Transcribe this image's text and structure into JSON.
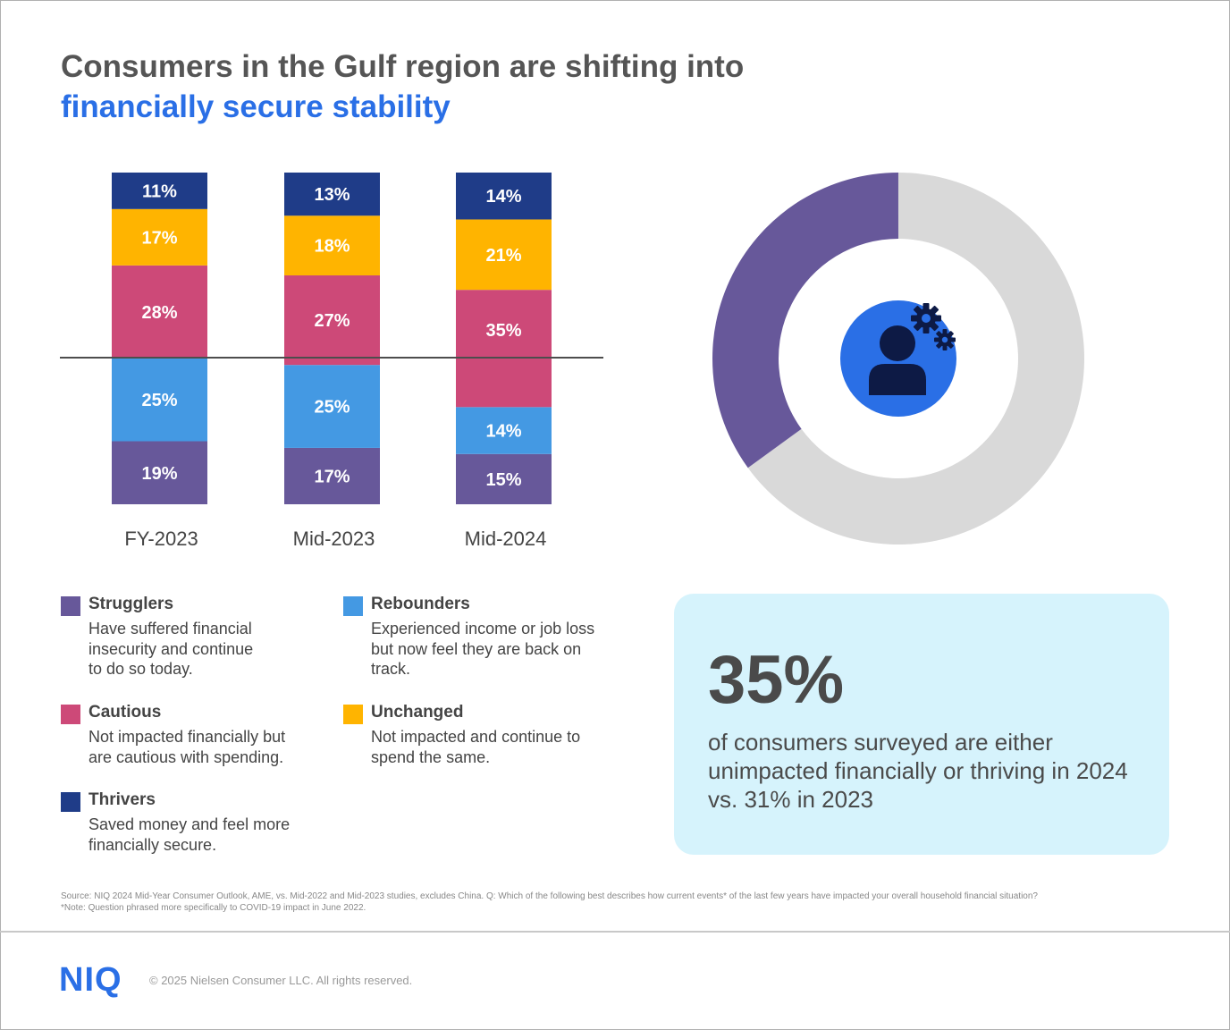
{
  "title": {
    "line1": "Consumers in the Gulf region are shifting into",
    "line2": "financially secure stability"
  },
  "colors": {
    "strugglers": "#67589a",
    "rebounders": "#4499e3",
    "cautious": "#cd4978",
    "unchanged": "#ffb400",
    "thrivers": "#1f3c88",
    "donut_gray": "#d9d9d9",
    "icon_circle": "#2a6fe6",
    "icon_dark": "#0d1a45"
  },
  "chart_data": {
    "type": "bar",
    "stacked": true,
    "categories": [
      "FY-2023",
      "Mid-2023",
      "Mid-2024"
    ],
    "series": [
      {
        "name": "Strugglers",
        "key": "strugglers",
        "values": [
          19,
          17,
          15
        ],
        "labels": [
          "19%",
          "17%",
          "15%"
        ]
      },
      {
        "name": "Rebounders",
        "key": "rebounders",
        "values": [
          25,
          25,
          14
        ],
        "labels": [
          "25%",
          "25%",
          "14%"
        ]
      },
      {
        "name": "Cautious",
        "key": "cautious",
        "values": [
          28,
          27,
          35
        ],
        "labels": [
          "28%",
          "27%",
          "35%"
        ]
      },
      {
        "name": "Unchanged",
        "key": "unchanged",
        "values": [
          17,
          18,
          21
        ],
        "labels": [
          "17%",
          "18%",
          "21%"
        ]
      },
      {
        "name": "Thrivers",
        "key": "thrivers",
        "values": [
          11,
          13,
          14
        ],
        "labels": [
          "11%",
          "13%",
          "14%"
        ]
      }
    ],
    "reference_line": "horizontal divider across bars",
    "donut": {
      "values": [
        35,
        65
      ],
      "highlight_label": "35%"
    }
  },
  "legend": {
    "strugglers": {
      "name": "Strugglers",
      "desc": "Have suffered financial insecurity and continue to do so today."
    },
    "rebounders": {
      "name": "Rebounders",
      "desc": "Experienced income or job loss but now feel they are back on track."
    },
    "cautious": {
      "name": "Cautious",
      "desc": "Not impacted financially but are cautious with spending."
    },
    "unchanged": {
      "name": "Unchanged",
      "desc": "Not impacted and continue to spend the same."
    },
    "thrivers": {
      "name": "Thrivers",
      "desc": "Saved money and feel more financially secure."
    }
  },
  "callout": {
    "big_pct": "35%",
    "text": "of consumers surveyed are either unimpacted financially or thriving in 2024 vs. 31% in 2023"
  },
  "icons": {
    "donut_center": "person-gears-icon"
  },
  "source": {
    "line1": "Source: NIQ 2024 Mid-Year Consumer Outlook, AME, vs. Mid-2022 and Mid-2023 studies, excludes China. Q: Which of the following best describes how current events* of the last few years have impacted your overall household financial situation?",
    "line2": "*Note: Question phrased more specifically to COVID-19 impact in June 2022."
  },
  "footer": {
    "logo": "NIQ",
    "copyright": "© 2025 Nielsen Consumer LLC. All rights reserved."
  }
}
